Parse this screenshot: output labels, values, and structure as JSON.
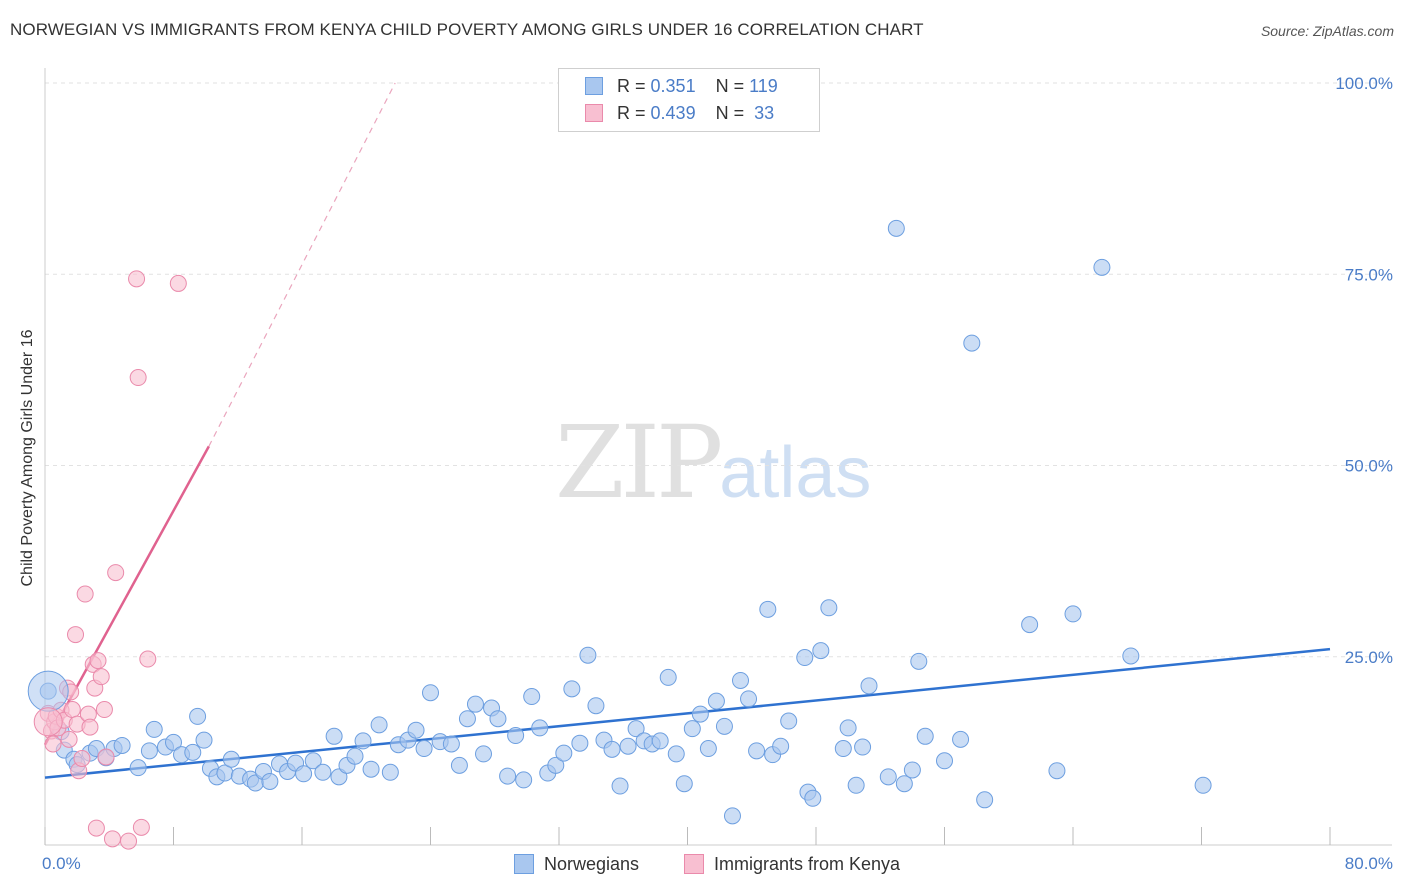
{
  "title": "NORWEGIAN VS IMMIGRANTS FROM KENYA CHILD POVERTY AMONG GIRLS UNDER 16 CORRELATION CHART",
  "source": "Source: ZipAtlas.com",
  "watermark": {
    "zip": "ZIP",
    "atlas": "atlas"
  },
  "legend": {
    "rows": [
      {
        "r_label": "R =",
        "r_value": "0.351",
        "n_label": "N =",
        "n_value": "119",
        "color": "#a9c7ef",
        "border": "#6d9fe0"
      },
      {
        "r_label": "R =",
        "r_value": "0.439",
        "n_label": "N =",
        "n_value": " 33",
        "color": "#f8bfd1",
        "border": "#ea8aab"
      }
    ]
  },
  "bottom_legend": [
    {
      "label": "Norwegians",
      "color": "#a9c7ef",
      "border": "#6d9fe0"
    },
    {
      "label": "Immigrants from Kenya",
      "color": "#f8bfd1",
      "border": "#ea8aab"
    }
  ],
  "chart_data": {
    "type": "scatter",
    "title": "NORWEGIAN VS IMMIGRANTS FROM KENYA CHILD POVERTY AMONG GIRLS UNDER 16 CORRELATION CHART",
    "xlabel": "",
    "ylabel": "Child Poverty Among Girls Under 16",
    "xlim": [
      0,
      80
    ],
    "ylim": [
      0,
      100
    ],
    "x_tick_labels": [
      "0.0%",
      "80.0%"
    ],
    "y_ticks": [
      25,
      50,
      75,
      100
    ],
    "y_tick_labels": [
      "25.0%",
      "50.0%",
      "75.0%",
      "100.0%"
    ],
    "grid": true,
    "legend_position": "top-center",
    "series": [
      {
        "name": "Norwegians",
        "color": "#a9c7ef",
        "stroke": "#6d9fe0",
        "trend": {
          "x": [
            0,
            80
          ],
          "y": [
            9.2,
            26.0
          ],
          "color": "#2f72d0"
        },
        "points": [
          [
            0.2,
            20.5
          ],
          [
            1.0,
            15.2
          ],
          [
            1.2,
            12.8
          ],
          [
            1.8,
            11.6
          ],
          [
            2.0,
            10.9
          ],
          [
            2.8,
            12.4
          ],
          [
            3.2,
            13.0
          ],
          [
            3.8,
            11.8
          ],
          [
            4.3,
            13.0
          ],
          [
            4.8,
            13.4
          ],
          [
            5.8,
            10.5
          ],
          [
            6.5,
            12.7
          ],
          [
            6.8,
            15.5
          ],
          [
            7.5,
            13.2
          ],
          [
            8.0,
            13.8
          ],
          [
            8.5,
            12.2
          ],
          [
            9.2,
            12.5
          ],
          [
            9.5,
            17.2
          ],
          [
            9.9,
            14.1
          ],
          [
            10.3,
            10.4
          ],
          [
            10.7,
            9.3
          ],
          [
            11.2,
            9.8
          ],
          [
            11.6,
            11.6
          ],
          [
            12.1,
            9.4
          ],
          [
            12.8,
            9.0
          ],
          [
            13.1,
            8.5
          ],
          [
            13.6,
            10.0
          ],
          [
            14.0,
            8.7
          ],
          [
            14.6,
            11.0
          ],
          [
            15.1,
            10.0
          ],
          [
            15.6,
            11.1
          ],
          [
            16.1,
            9.7
          ],
          [
            16.7,
            11.4
          ],
          [
            17.3,
            9.9
          ],
          [
            18.0,
            14.6
          ],
          [
            18.3,
            9.3
          ],
          [
            18.8,
            10.8
          ],
          [
            19.3,
            12.0
          ],
          [
            19.8,
            14.0
          ],
          [
            20.3,
            10.3
          ],
          [
            20.8,
            16.1
          ],
          [
            21.5,
            9.9
          ],
          [
            22.0,
            13.5
          ],
          [
            22.6,
            14.1
          ],
          [
            23.1,
            15.4
          ],
          [
            23.6,
            13.0
          ],
          [
            24.0,
            20.3
          ],
          [
            24.6,
            13.9
          ],
          [
            25.3,
            13.6
          ],
          [
            25.8,
            10.8
          ],
          [
            26.3,
            16.9
          ],
          [
            26.8,
            18.8
          ],
          [
            27.3,
            12.3
          ],
          [
            27.8,
            18.3
          ],
          [
            28.2,
            16.9
          ],
          [
            28.8,
            9.4
          ],
          [
            29.3,
            14.7
          ],
          [
            29.8,
            8.9
          ],
          [
            30.3,
            19.8
          ],
          [
            30.8,
            15.7
          ],
          [
            31.3,
            9.8
          ],
          [
            31.8,
            10.8
          ],
          [
            32.3,
            12.4
          ],
          [
            32.8,
            20.8
          ],
          [
            33.3,
            13.7
          ],
          [
            33.8,
            25.2
          ],
          [
            34.3,
            18.6
          ],
          [
            34.8,
            14.1
          ],
          [
            35.3,
            12.9
          ],
          [
            35.8,
            8.1
          ],
          [
            36.3,
            13.3
          ],
          [
            36.8,
            15.6
          ],
          [
            37.3,
            14.0
          ],
          [
            37.8,
            13.6
          ],
          [
            38.3,
            14.0
          ],
          [
            38.8,
            22.3
          ],
          [
            39.3,
            12.3
          ],
          [
            39.8,
            8.4
          ],
          [
            40.3,
            15.6
          ],
          [
            40.8,
            17.5
          ],
          [
            41.3,
            13.0
          ],
          [
            41.8,
            19.2
          ],
          [
            42.3,
            15.9
          ],
          [
            42.8,
            4.2
          ],
          [
            43.3,
            21.9
          ],
          [
            43.8,
            19.5
          ],
          [
            44.3,
            12.7
          ],
          [
            45.0,
            31.2
          ],
          [
            45.3,
            12.2
          ],
          [
            45.8,
            13.3
          ],
          [
            46.3,
            16.6
          ],
          [
            47.3,
            24.9
          ],
          [
            47.5,
            7.3
          ],
          [
            47.8,
            6.5
          ],
          [
            48.3,
            25.8
          ],
          [
            48.8,
            31.4
          ],
          [
            49.7,
            13.0
          ],
          [
            50.0,
            15.7
          ],
          [
            50.5,
            8.2
          ],
          [
            50.9,
            13.2
          ],
          [
            51.3,
            21.2
          ],
          [
            52.5,
            9.3
          ],
          [
            53.0,
            81.0
          ],
          [
            53.5,
            8.4
          ],
          [
            54.0,
            10.2
          ],
          [
            54.4,
            24.4
          ],
          [
            54.8,
            14.6
          ],
          [
            56.0,
            11.4
          ],
          [
            57.0,
            14.2
          ],
          [
            57.7,
            66.0
          ],
          [
            58.5,
            6.3
          ],
          [
            61.3,
            29.2
          ],
          [
            63.0,
            10.1
          ],
          [
            64.0,
            30.6
          ],
          [
            65.8,
            75.9
          ],
          [
            67.6,
            25.1
          ],
          [
            72.1,
            8.2
          ]
        ]
      },
      {
        "name": "Immigrants from Kenya",
        "color": "#f8bfd1",
        "stroke": "#ea8aab",
        "trend": {
          "x": [
            0,
            10.2
          ],
          "y": [
            13.5,
            52.5
          ],
          "color": "#e0628f",
          "dash_to": {
            "x": 21.8,
            "y": 100
          }
        },
        "points": [
          [
            0.2,
            17.6
          ],
          [
            0.4,
            15.3
          ],
          [
            0.5,
            13.6
          ],
          [
            0.6,
            16.5
          ],
          [
            0.7,
            17.2
          ],
          [
            0.8,
            15.7
          ],
          [
            1.0,
            18.0
          ],
          [
            1.2,
            16.7
          ],
          [
            1.4,
            20.9
          ],
          [
            1.5,
            14.2
          ],
          [
            1.6,
            20.4
          ],
          [
            1.7,
            18.1
          ],
          [
            1.9,
            27.9
          ],
          [
            2.0,
            16.2
          ],
          [
            2.1,
            10.1
          ],
          [
            2.3,
            11.7
          ],
          [
            2.5,
            33.2
          ],
          [
            2.7,
            17.5
          ],
          [
            2.8,
            15.8
          ],
          [
            3.0,
            24.0
          ],
          [
            3.1,
            20.9
          ],
          [
            3.2,
            2.6
          ],
          [
            3.3,
            24.5
          ],
          [
            3.5,
            22.4
          ],
          [
            3.7,
            18.1
          ],
          [
            3.8,
            11.9
          ],
          [
            4.2,
            1.2
          ],
          [
            4.4,
            36.0
          ],
          [
            5.2,
            0.9
          ],
          [
            5.7,
            74.4
          ],
          [
            5.8,
            61.5
          ],
          [
            6.0,
            2.7
          ],
          [
            6.4,
            24.7
          ],
          [
            8.3,
            73.8
          ]
        ]
      }
    ]
  }
}
